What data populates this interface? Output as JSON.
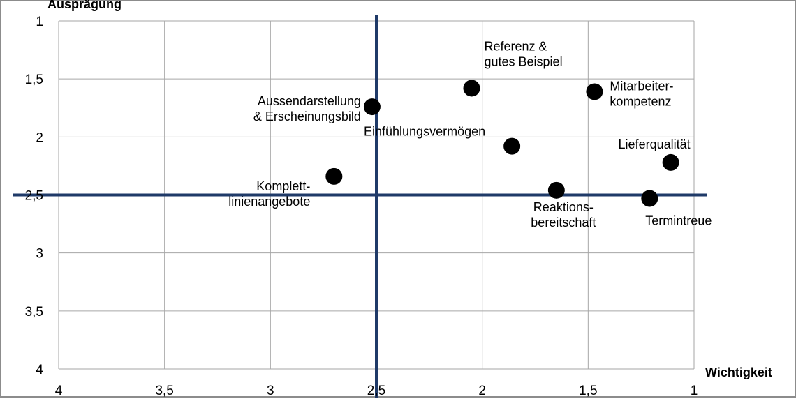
{
  "chart_data": {
    "type": "scatter",
    "xlabel": "Wichtigkeit",
    "ylabel": "Ausprägung",
    "xlim": [
      4,
      1
    ],
    "ylim": [
      1,
      4
    ],
    "x_reversed": true,
    "y_reversed": true,
    "x_ticks": [
      "4",
      "3,5",
      "3",
      "2,5",
      "2",
      "1,5",
      "1"
    ],
    "y_ticks": [
      "1",
      "1,5",
      "2",
      "2,5",
      "3",
      "3,5",
      "4"
    ],
    "x_tick_values": [
      4,
      3.5,
      3,
      2.5,
      2,
      1.5,
      1
    ],
    "y_tick_values": [
      1,
      1.5,
      2,
      2.5,
      3,
      3.5,
      4
    ],
    "grid": true,
    "reference_lines": {
      "x": 2.5,
      "y": 2.5,
      "color": "#1f3a68"
    },
    "marker_color": "#000000",
    "points": [
      {
        "x": 2.05,
        "y": 1.58,
        "label": [
          "Referenz &",
          "gutes Beispiel"
        ]
      },
      {
        "x": 1.47,
        "y": 1.61,
        "label": [
          "Mitarbeiter-",
          "kompetenz"
        ]
      },
      {
        "x": 2.52,
        "y": 1.74,
        "label": [
          "Aussendarstellung",
          "& Erscheinungsbild"
        ]
      },
      {
        "x": 1.86,
        "y": 2.08,
        "label": [
          "Einfühlungsvermögen"
        ]
      },
      {
        "x": 1.11,
        "y": 2.22,
        "label": [
          "Lieferqualität"
        ]
      },
      {
        "x": 2.7,
        "y": 2.34,
        "label": [
          "Komplett-",
          "linienangebote"
        ]
      },
      {
        "x": 1.65,
        "y": 2.46,
        "label": [
          "Reaktions-",
          "bereitschaft"
        ]
      },
      {
        "x": 1.21,
        "y": 2.53,
        "label": [
          "Termintreue"
        ]
      }
    ]
  }
}
